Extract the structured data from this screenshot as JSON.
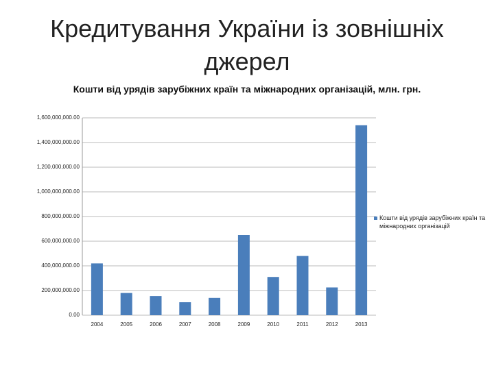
{
  "chart_data": {
    "type": "bar",
    "title": "Кредитування України із зовнішніх джерел",
    "subtitle": "Кошти від урядів зарубіжних країн та міжнародних організацій, млн. грн.",
    "categories": [
      "2004",
      "2005",
      "2006",
      "2007",
      "2008",
      "2009",
      "2010",
      "2011",
      "2012",
      "2013"
    ],
    "series": [
      {
        "name": "Кошти від урядів зарубіжних країн та міжнародних організацій",
        "color": "#4a7ebb",
        "values": [
          420000000,
          180000000,
          155000000,
          105000000,
          140000000,
          650000000,
          310000000,
          480000000,
          225000000,
          1540000000
        ]
      }
    ],
    "ylim": [
      0,
      1600000000
    ],
    "yticks": [
      {
        "value": 0,
        "label": "0.00"
      },
      {
        "value": 200000000,
        "label": "200,000,000.00"
      },
      {
        "value": 400000000,
        "label": "400,000,000.00"
      },
      {
        "value": 600000000,
        "label": "600,000,000.00"
      },
      {
        "value": 800000000,
        "label": "800,000,000.00"
      },
      {
        "value": 1000000000,
        "label": "1,000,000,000.00"
      },
      {
        "value": 1200000000,
        "label": "1,200,000,000.00"
      },
      {
        "value": 1400000000,
        "label": "1,400,000,000.00"
      },
      {
        "value": 1600000000,
        "label": "1,600,000,000.00"
      }
    ],
    "grid": true,
    "legend": "right"
  }
}
